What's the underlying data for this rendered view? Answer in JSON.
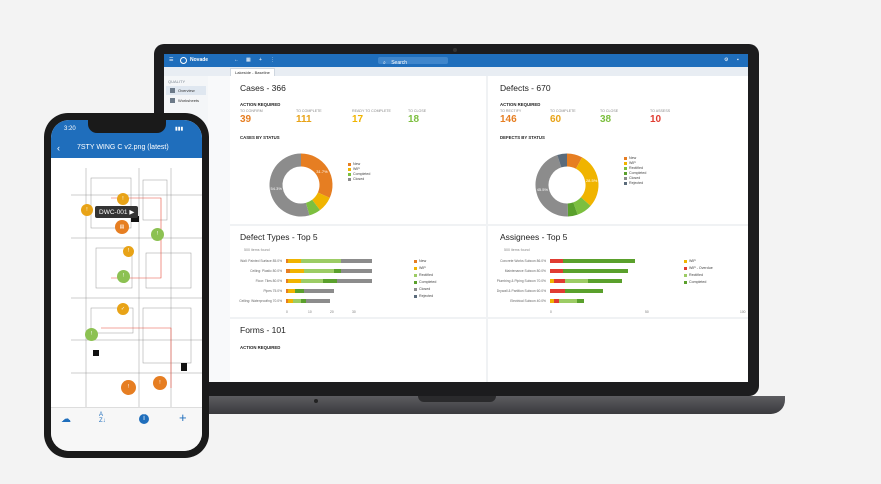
{
  "app": {
    "name": "Novade",
    "search_placeholder": "Search",
    "tab_label": "Lakeside - Baseline",
    "sidebar": {
      "section": "QUALITY",
      "items": [
        {
          "label": "Overview"
        },
        {
          "label": "Worksheets"
        }
      ]
    }
  },
  "cases": {
    "title": "Cases - 366",
    "action_required": "ACTION REQUIRED",
    "metrics": [
      {
        "label": "TO CONFIRM",
        "value": "39",
        "color": "#e67e22"
      },
      {
        "label": "TO COMPLETE",
        "value": "111",
        "color": "#e8a317"
      },
      {
        "label": "READY TO COMPLETE",
        "value": "17",
        "color": "#f0b400"
      },
      {
        "label": "TO CLOSE",
        "value": "18",
        "color": "#7cbf3f"
      }
    ],
    "by_status": "CASES BY STATUS",
    "legend": [
      {
        "label": "New",
        "color": "#e67e22"
      },
      {
        "label": "WIP",
        "color": "#f0b400"
      },
      {
        "label": "Completed",
        "color": "#7cbf3f"
      },
      {
        "label": "Closed",
        "color": "#8c8c8c"
      }
    ],
    "donut": [
      {
        "value": 31.7,
        "label": "31.7%"
      },
      {
        "value": 8,
        "label": ""
      },
      {
        "value": 6,
        "label": ""
      },
      {
        "value": 54.3,
        "label": "54.3%"
      }
    ]
  },
  "defects": {
    "title": "Defects - 670",
    "action_required": "ACTION REQUIRED",
    "metrics": [
      {
        "label": "TO RECTIFY",
        "value": "146",
        "color": "#e67e22"
      },
      {
        "label": "TO COMPLETE",
        "value": "60",
        "color": "#e8a317"
      },
      {
        "label": "TO CLOSE",
        "value": "38",
        "color": "#7cbf3f"
      },
      {
        "label": "TO ASSESS",
        "value": "10",
        "color": "#e03c31"
      }
    ],
    "by_status": "DEFECTS BY STATUS",
    "legend": [
      {
        "label": "New",
        "color": "#e67e22"
      },
      {
        "label": "WIP",
        "color": "#f0b400"
      },
      {
        "label": "Rectified",
        "color": "#7cbf3f"
      },
      {
        "label": "Completed",
        "color": "#5aa02c"
      },
      {
        "label": "Closed",
        "color": "#8c8c8c"
      },
      {
        "label": "Rejected",
        "color": "#5b6b7b"
      }
    ],
    "donut": [
      {
        "value": 8,
        "label": ""
      },
      {
        "value": 28.5,
        "label": "28.5%"
      },
      {
        "value": 8,
        "label": ""
      },
      {
        "value": 5,
        "label": ""
      },
      {
        "value": 45.5,
        "label": "45.5%"
      },
      {
        "value": 5,
        "label": ""
      }
    ]
  },
  "defect_types": {
    "title": "Defect Types - Top 5",
    "subtitle": "500 items found",
    "legend": [
      {
        "label": "New",
        "color": "#e67e22"
      },
      {
        "label": "WIP",
        "color": "#f0b400"
      },
      {
        "label": "Rectified",
        "color": "#9ccc65"
      },
      {
        "label": "Completed",
        "color": "#5aa02c"
      },
      {
        "label": "Closed",
        "color": "#8c8c8c"
      },
      {
        "label": "Rejected",
        "color": "#5b6b7b"
      }
    ],
    "rows": [
      {
        "label": "Wall: Painted Surface 85.0%",
        "segs": [
          1,
          6,
          18,
          0,
          14
        ]
      },
      {
        "label": "Ceiling: Plastic 80.0%",
        "segs": [
          2,
          6,
          14,
          3,
          14
        ]
      },
      {
        "label": "Floor: Tiles 80.0%",
        "segs": [
          1,
          6,
          10,
          6,
          16
        ]
      },
      {
        "label": "Pipes 75.0%",
        "segs": [
          1,
          3,
          0,
          4,
          14
        ]
      },
      {
        "label": "Ceiling: Waterproofing 70.0%",
        "segs": [
          1,
          2,
          4,
          2,
          11
        ]
      }
    ],
    "ticks": [
      "0",
      "10",
      "20",
      "30"
    ]
  },
  "assignees": {
    "title": "Assignees - Top 5",
    "subtitle": "500 items found",
    "legend": [
      {
        "label": "WIP",
        "color": "#f0b400"
      },
      {
        "label": "WIP - Overdue",
        "color": "#e03c31"
      },
      {
        "label": "Rectified",
        "color": "#9ccc65"
      },
      {
        "label": "Completed",
        "color": "#5aa02c"
      }
    ],
    "rows": [
      {
        "label": "Concrete Works Subcon 86.0%",
        "segs": [
          0,
          7,
          0,
          38
        ]
      },
      {
        "label": "Maintenance Subcon 80.0%",
        "segs": [
          0,
          7,
          0,
          34
        ]
      },
      {
        "label": "Plumbing & Piping Subcon 70.0%",
        "segs": [
          2,
          6,
          12,
          18
        ]
      },
      {
        "label": "Drywall & Partition Subcon 60.0%",
        "segs": [
          0,
          8,
          0,
          20
        ]
      },
      {
        "label": "Electrical Subcon 40.0%",
        "segs": [
          2,
          3,
          9,
          4
        ]
      }
    ],
    "ticks": [
      "0",
      "50",
      "100"
    ]
  },
  "forms": {
    "title": "Forms - 101",
    "action_required": "ACTION REQUIRED"
  },
  "phone": {
    "time": "3:20",
    "drawing_title": "7STY WING C v2.png (latest)",
    "grid_cols": [
      "9",
      "10",
      "11"
    ],
    "grid_rows": [
      "A",
      "B",
      "C",
      "C1",
      "D"
    ],
    "tooltip": "DWC-001"
  }
}
